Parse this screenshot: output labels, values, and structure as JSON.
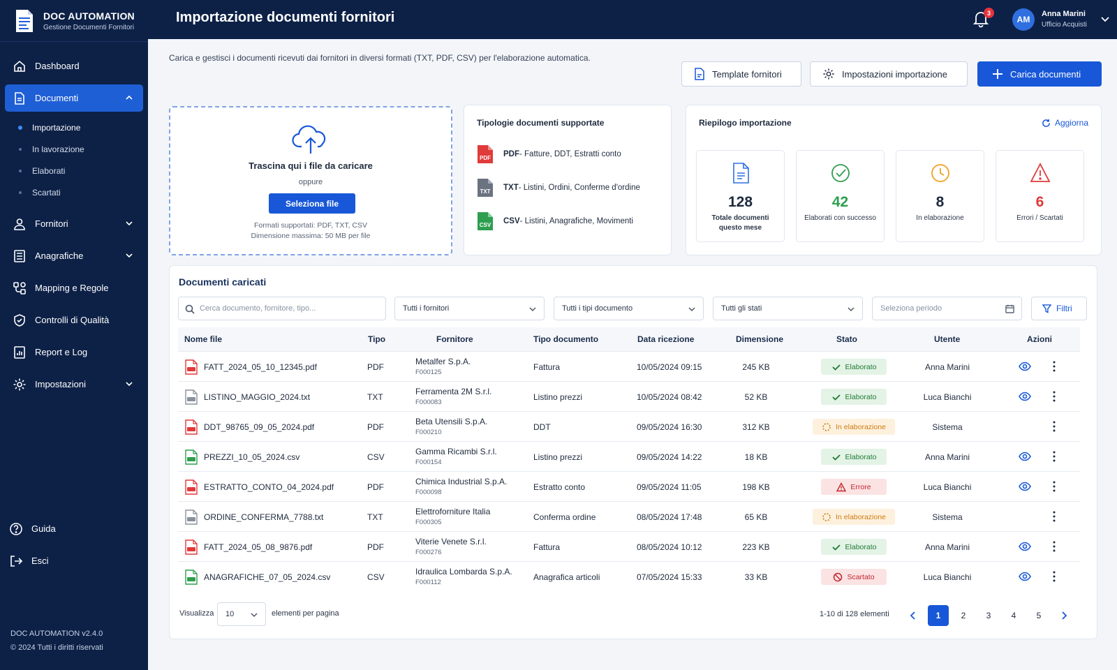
{
  "brand": {
    "title": "DOC AUTOMATION",
    "subtitle": "Gestione Documenti Fornitori"
  },
  "sidebar": {
    "items": [
      {
        "label": "Dashboard",
        "icon": "home-icon"
      },
      {
        "label": "Documenti",
        "icon": "document-icon"
      },
      {
        "label": "Fornitori",
        "icon": "user-icon"
      },
      {
        "label": "Anagrafiche",
        "icon": "list-icon"
      },
      {
        "label": "Mapping e Regole",
        "icon": "mapping-icon"
      },
      {
        "label": "Controlli di Qualità",
        "icon": "shield-check-icon"
      },
      {
        "label": "Report e Log",
        "icon": "report-icon"
      },
      {
        "label": "Impostazioni",
        "icon": "gear-icon"
      }
    ],
    "subitems": [
      "Importazione",
      "In lavorazione",
      "Elaborati",
      "Scartati"
    ],
    "bottom": [
      {
        "label": "Guida",
        "icon": "help-icon"
      },
      {
        "label": "Esci",
        "icon": "logout-icon"
      }
    ],
    "footer": {
      "version": "DOC AUTOMATION v2.4.0",
      "copyright": "© 2024 Tutti i diritti riservati"
    }
  },
  "header": {
    "title": "Importazione documenti fornitori",
    "notifications": "3",
    "avatar": "AM",
    "user_name": "Anna Marini",
    "user_role": "Ufficio Acquisti"
  },
  "main": {
    "description": "Carica e gestisci i documenti ricevuti dai fornitori in diversi formati (TXT, PDF, CSV) per l'elaborazione automatica.",
    "buttons": {
      "templates": "Template fornitori",
      "settings": "Impostazioni importazione",
      "upload": "Carica documenti"
    }
  },
  "dropzone": {
    "title": "Trascina qui i file da caricare",
    "or": "oppure",
    "button": "Seleziona file",
    "formats": "Formati supportati: PDF, TXT, CSV",
    "maxsize": "Dimensione massima: 50 MB per file"
  },
  "types": {
    "title": "Tipologie documenti supportate",
    "items": [
      {
        "ext": "PDF",
        "desc": " - Fatture, DDT, Estratti conto",
        "color": "#e03a3a"
      },
      {
        "ext": "TXT",
        "desc": " - Listini, Ordini, Conferme d'ordine",
        "color": "#6b7280"
      },
      {
        "ext": "CSV",
        "desc": " - Listini, Anagrafiche, Movimenti",
        "color": "#2e9e4f"
      }
    ]
  },
  "summary": {
    "title": "Riepilogo importazione",
    "refresh": "Aggiorna",
    "stats": [
      {
        "value": "128",
        "label": "Totale documenti questo mese",
        "color": "#1e2a3d",
        "icon": "document-icon"
      },
      {
        "value": "42",
        "label": "Elaborati con successo",
        "color": "#2e9e4f",
        "icon": "check-circle-icon"
      },
      {
        "value": "8",
        "label": "In elaborazione",
        "color": "#1e2a3d",
        "icon": "clock-icon"
      },
      {
        "value": "6",
        "label": "Errori / Scartati",
        "color": "#e03a3a",
        "icon": "warning-icon"
      }
    ]
  },
  "table": {
    "title": "Documenti caricati",
    "search_placeholder": "Cerca documento, fornitore, tipo...",
    "filters": {
      "suppliers": "Tutti i fornitori",
      "doc_types": "Tutti i tipi documento",
      "states": "Tutti gli stati",
      "period": "Seleziona periodo",
      "filters_button": "Filtri"
    },
    "columns": [
      "Nome file",
      "Tipo",
      "Fornitore",
      "Tipo documento",
      "Data ricezione",
      "Dimensione",
      "Stato",
      "Utente",
      "Azioni"
    ],
    "rows": [
      {
        "file": "FATT_2024_05_10_12345.pdf",
        "type": "PDF",
        "supplier": "Metalfer S.p.A.",
        "code": "F000125",
        "doctype": "Fattura",
        "date": "10/05/2024 09:15",
        "size": "245 KB",
        "status": "Elaborato",
        "status_kind": "ok",
        "user": "Anna Marini",
        "view": true
      },
      {
        "file": "LISTINO_MAGGIO_2024.txt",
        "type": "TXT",
        "supplier": "Ferramenta 2M S.r.l.",
        "code": "F000083",
        "doctype": "Listino prezzi",
        "date": "10/05/2024 08:42",
        "size": "52 KB",
        "status": "Elaborato",
        "status_kind": "ok",
        "user": "Luca Bianchi",
        "view": true
      },
      {
        "file": "DDT_98765_09_05_2024.pdf",
        "type": "PDF",
        "supplier": "Beta Utensili S.p.A.",
        "code": "F000210",
        "doctype": "DDT",
        "date": "09/05/2024 16:30",
        "size": "312 KB",
        "status": "In elaborazione",
        "status_kind": "proc",
        "user": "Sistema",
        "view": false
      },
      {
        "file": "PREZZI_10_05_2024.csv",
        "type": "CSV",
        "supplier": "Gamma Ricambi S.r.l.",
        "code": "F000154",
        "doctype": "Listino prezzi",
        "date": "09/05/2024 14:22",
        "size": "18 KB",
        "status": "Elaborato",
        "status_kind": "ok",
        "user": "Anna Marini",
        "view": true
      },
      {
        "file": "ESTRATTO_CONTO_04_2024.pdf",
        "type": "PDF",
        "supplier": "Chimica Industrial S.p.A.",
        "code": "F000098",
        "doctype": "Estratto conto",
        "date": "09/05/2024 11:05",
        "size": "198 KB",
        "status": "Errore",
        "status_kind": "err",
        "user": "Luca Bianchi",
        "view": true
      },
      {
        "file": "ORDINE_CONFERMA_7788.txt",
        "type": "TXT",
        "supplier": "Elettroforniture Italia",
        "code": "F000305",
        "doctype": "Conferma ordine",
        "date": "08/05/2024 17:48",
        "size": "65 KB",
        "status": "In elaborazione",
        "status_kind": "proc",
        "user": "Sistema",
        "view": false
      },
      {
        "file": "FATT_2024_05_08_9876.pdf",
        "type": "PDF",
        "supplier": "Viterie Venete S.r.l.",
        "code": "F000276",
        "doctype": "Fattura",
        "date": "08/05/2024 10:12",
        "size": "223 KB",
        "status": "Elaborato",
        "status_kind": "ok",
        "user": "Anna Marini",
        "view": true
      },
      {
        "file": "ANAGRAFICHE_07_05_2024.csv",
        "type": "CSV",
        "supplier": "Idraulica Lombarda S.p.A.",
        "code": "F000112",
        "doctype": "Anagrafica articoli",
        "date": "07/05/2024 15:33",
        "size": "33 KB",
        "status": "Scartato",
        "status_kind": "rej",
        "user": "Luca Bianchi",
        "view": true
      }
    ],
    "pagination": {
      "show_label": "Visualizza",
      "per_page": "10",
      "per_page_label": "elementi per pagina",
      "range": "1-10 di 128 elementi",
      "pages": [
        "1",
        "2",
        "3",
        "4",
        "5"
      ],
      "current": "1"
    }
  },
  "colors": {
    "sidebar": "#0d2147",
    "accent": "#1857d8",
    "success": "#2e9e4f",
    "warning": "#d07a10",
    "error": "#e03a3a"
  }
}
